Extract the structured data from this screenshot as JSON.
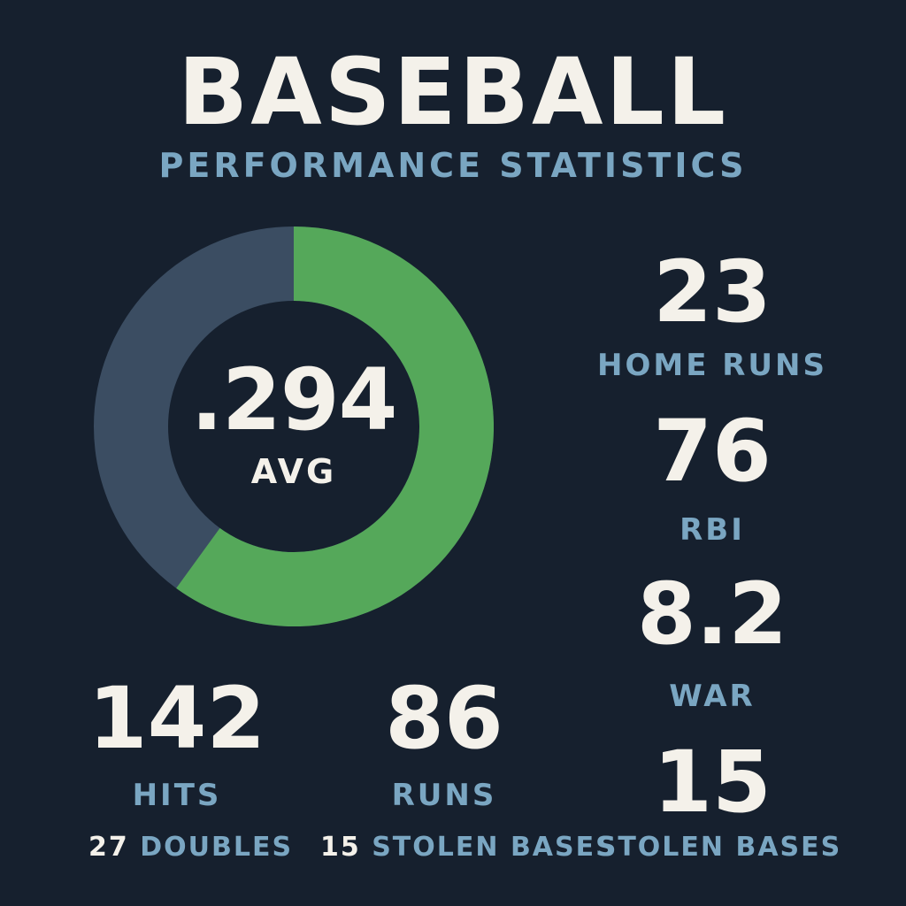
{
  "header": {
    "title": "BASEBALL",
    "subtitle": "PERFORMANCE STATISTICS"
  },
  "average": {
    "value": ".294",
    "label": "AVG",
    "fill_fraction": 0.6
  },
  "right_stats": [
    {
      "value": "23",
      "label": "HOME RUNS"
    },
    {
      "value": "76",
      "label": "RBI"
    },
    {
      "value": "8.2",
      "label": "WAR"
    },
    {
      "value": "15",
      "label": "STOLEN BASES"
    }
  ],
  "bottom_stats": [
    {
      "value": "142",
      "label": "HITS"
    },
    {
      "value": "86",
      "label": "RUNS"
    }
  ],
  "footer": [
    {
      "value": "27",
      "label": "DOUBLES"
    },
    {
      "value": "15",
      "label": "STOLEN BASES"
    }
  ],
  "colors": {
    "background": "#16202e",
    "ring_fill": "#55a85a",
    "ring_track": "#3b4d62",
    "accent_text": "#7aa6c2",
    "primary_text": "#f4f1ea"
  }
}
